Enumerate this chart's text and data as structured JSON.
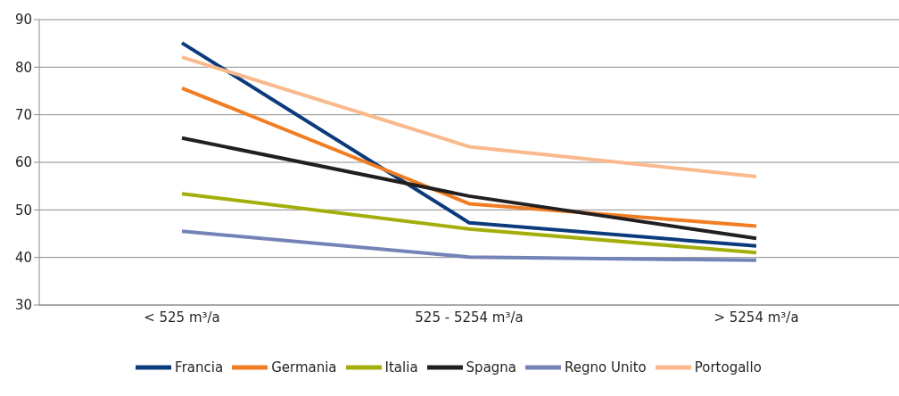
{
  "chart_data": {
    "type": "line",
    "categories": [
      "< 525 m³/a",
      "525 - 5254 m³/a",
      "> 5254 m³/a"
    ],
    "series": [
      {
        "name": "Francia",
        "color": "#0b3b7c",
        "values": [
          85.1,
          47.3,
          42.4
        ]
      },
      {
        "name": "Germania",
        "color": "#f07d22",
        "values": [
          75.6,
          51.3,
          46.6
        ]
      },
      {
        "name": "Italia",
        "color": "#a3ae0a",
        "values": [
          53.4,
          46,
          41
        ]
      },
      {
        "name": "Spagna",
        "color": "#231f20",
        "values": [
          65.1,
          52.9,
          44
        ]
      },
      {
        "name": "Regno Unito",
        "color": "#7383b5",
        "values": [
          45.5,
          40.1,
          39.4
        ]
      },
      {
        "name": "Portogallo",
        "color": "#f9b98c",
        "values": [
          82.1,
          63.3,
          57
        ]
      }
    ],
    "ylim": [
      30,
      90
    ],
    "yticks": [
      30,
      40,
      50,
      60,
      70,
      80,
      90
    ],
    "grid": "y",
    "legend": "bottom",
    "marker": "none",
    "line_style": "solid"
  }
}
